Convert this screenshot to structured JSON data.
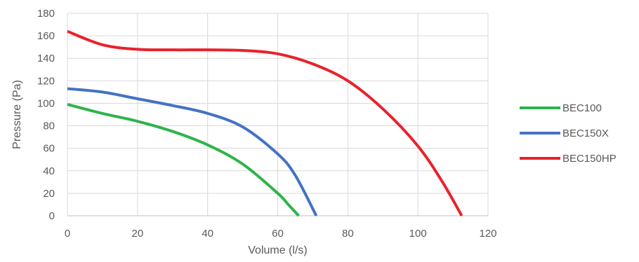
{
  "chart_data": {
    "type": "line",
    "title": "",
    "xlabel": "Volume (l/s)",
    "ylabel": "Pressure (Pa)",
    "xlim": [
      0,
      120
    ],
    "ylim": [
      0,
      180
    ],
    "xticks": [
      0,
      20,
      40,
      60,
      80,
      100,
      120
    ],
    "yticks": [
      0,
      20,
      40,
      60,
      80,
      100,
      120,
      140,
      160,
      180
    ],
    "grid": true,
    "legend_position": "right",
    "series": [
      {
        "name": "BEC100",
        "color": "#2eb34a",
        "x": [
          0,
          10,
          20,
          30,
          40,
          50,
          60,
          63,
          66
        ],
        "y": [
          99,
          91,
          84,
          75,
          63,
          46,
          20,
          10,
          0
        ]
      },
      {
        "name": "BEC150X",
        "color": "#4472c4",
        "x": [
          0,
          10,
          20,
          30,
          40,
          50,
          60,
          65,
          71
        ],
        "y": [
          113,
          110,
          104,
          98,
          91,
          79,
          55,
          36,
          0
        ]
      },
      {
        "name": "BEC150HP",
        "color": "#e8222c",
        "x": [
          0,
          10,
          20,
          30,
          40,
          50,
          60,
          70,
          80,
          90,
          100,
          107,
          112.5
        ],
        "y": [
          164,
          152,
          148,
          147.5,
          147.5,
          147,
          144,
          135,
          120,
          95,
          62,
          30,
          0
        ]
      }
    ]
  }
}
